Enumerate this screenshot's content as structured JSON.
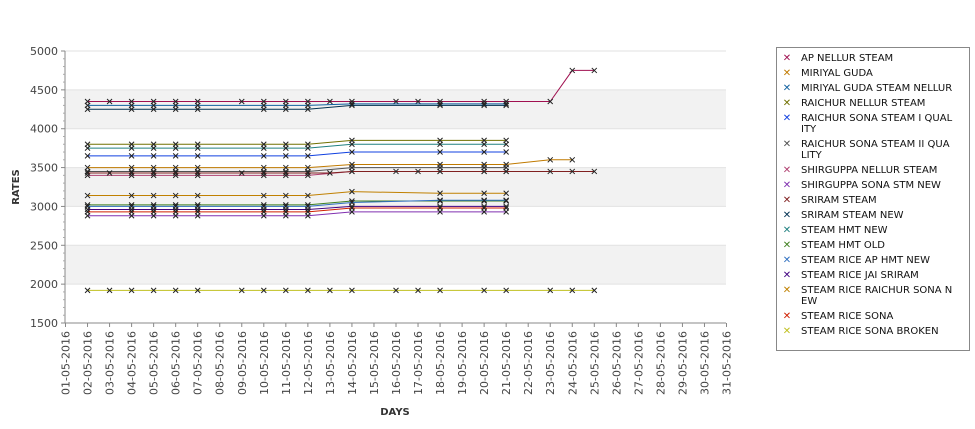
{
  "chart_data": {
    "type": "line",
    "xlabel": "DAYS",
    "ylabel": "RATES",
    "ylim": [
      1500,
      5000
    ],
    "yticks": [
      1500,
      2000,
      2500,
      3000,
      3500,
      4000,
      4500,
      5000
    ],
    "x": [
      "01-05-2016",
      "02-05-2016",
      "03-05-2016",
      "04-05-2016",
      "05-05-2016",
      "06-05-2016",
      "07-05-2016",
      "08-05-2016",
      "09-05-2016",
      "10-05-2016",
      "11-05-2016",
      "12-05-2016",
      "13-05-2016",
      "14-05-2016",
      "15-05-2016",
      "16-05-2016",
      "17-05-2016",
      "18-05-2016",
      "19-05-2016",
      "20-05-2016",
      "21-05-2016",
      "22-05-2016",
      "23-05-2016",
      "24-05-2016",
      "25-05-2016",
      "26-05-2016",
      "27-05-2016",
      "28-05-2016",
      "29-05-2016",
      "30-05-2016",
      "31-05-2016"
    ],
    "grid": true,
    "legend_position": "right",
    "series": [
      {
        "name": "AP NELLUR STEAM",
        "color": "#a01050",
        "values": [
          null,
          4350,
          4350,
          4350,
          4350,
          4350,
          4350,
          null,
          4350,
          4350,
          4350,
          4350,
          4350,
          4350,
          null,
          4350,
          4350,
          4350,
          null,
          4350,
          4350,
          null,
          4350,
          4750,
          4750,
          null,
          null,
          null,
          null,
          null,
          null
        ]
      },
      {
        "name": "MIRIYAL GUDA",
        "color": "#c07a00",
        "values": [
          null,
          3500,
          null,
          3500,
          3500,
          3500,
          3500,
          null,
          null,
          3500,
          3500,
          3500,
          null,
          3540,
          null,
          null,
          null,
          3540,
          null,
          3540,
          3540,
          null,
          3600,
          3600,
          null,
          null,
          null,
          null,
          null,
          null,
          null
        ]
      },
      {
        "name": "MIRIYAL GUDA STEAM NELLUR",
        "color": "#1060a0",
        "values": [
          null,
          4300,
          null,
          4300,
          4300,
          4300,
          4300,
          null,
          null,
          4300,
          4300,
          4300,
          null,
          4320,
          null,
          null,
          null,
          4320,
          null,
          4320,
          4320,
          null,
          null,
          null,
          null,
          null,
          null,
          null,
          null,
          null,
          null
        ]
      },
      {
        "name": "RAICHUR NELLUR STEAM",
        "color": "#707000",
        "values": [
          null,
          3800,
          null,
          3800,
          3800,
          3800,
          3800,
          null,
          null,
          3800,
          3800,
          3800,
          null,
          3850,
          null,
          null,
          null,
          3850,
          null,
          3850,
          3850,
          null,
          null,
          null,
          null,
          null,
          null,
          null,
          null,
          null,
          null
        ]
      },
      {
        "name": "RAICHUR SONA STEAM I QUALITY",
        "color": "#1040e0",
        "values": [
          null,
          3650,
          null,
          3650,
          3650,
          3650,
          3650,
          null,
          null,
          3650,
          3650,
          3650,
          null,
          3700,
          null,
          null,
          null,
          3700,
          null,
          3700,
          3700,
          null,
          null,
          null,
          null,
          null,
          null,
          null,
          null,
          null,
          null
        ]
      },
      {
        "name": "RAICHUR SONA STEAM II QUALITY",
        "color": "#505050",
        "values": [
          null,
          3450,
          null,
          3450,
          3450,
          3450,
          3450,
          null,
          null,
          3450,
          3450,
          3450,
          null,
          3500,
          null,
          null,
          null,
          3500,
          null,
          3500,
          3500,
          null,
          null,
          null,
          null,
          null,
          null,
          null,
          null,
          null,
          null
        ]
      },
      {
        "name": "SHIRGUPPA NELLUR STEAM",
        "color": "#b04070",
        "values": [
          null,
          3400,
          null,
          3400,
          3400,
          3400,
          3400,
          null,
          null,
          3400,
          3400,
          3400,
          null,
          3450,
          null,
          null,
          null,
          3450,
          null,
          3450,
          3450,
          null,
          null,
          null,
          null,
          null,
          null,
          null,
          null,
          null,
          null
        ]
      },
      {
        "name": "SHIRGUPPA SONA STM NEW",
        "color": "#8030b0",
        "values": [
          null,
          2880,
          null,
          2880,
          2880,
          2880,
          2880,
          null,
          null,
          2880,
          2880,
          2880,
          null,
          2930,
          null,
          null,
          null,
          2930,
          null,
          2930,
          2930,
          null,
          null,
          null,
          null,
          null,
          null,
          null,
          null,
          null,
          null
        ]
      },
      {
        "name": "SRIRAM STEAM",
        "color": "#802020",
        "values": [
          null,
          3430,
          3430,
          3430,
          3430,
          3430,
          3430,
          null,
          3430,
          3430,
          3430,
          3430,
          3430,
          3450,
          null,
          3450,
          3450,
          3450,
          null,
          3450,
          3450,
          null,
          3450,
          3450,
          3450,
          null,
          null,
          null,
          null,
          null,
          null
        ]
      },
      {
        "name": "SRIRAM STEAM NEW",
        "color": "#003050",
        "values": [
          null,
          4250,
          null,
          4250,
          4250,
          4250,
          4250,
          null,
          null,
          4250,
          4250,
          4250,
          null,
          4300,
          null,
          null,
          null,
          4300,
          null,
          4300,
          4300,
          null,
          null,
          null,
          null,
          null,
          null,
          null,
          null,
          null,
          null
        ]
      },
      {
        "name": "STEAM HMT NEW",
        "color": "#208080",
        "values": [
          null,
          3750,
          null,
          3750,
          3750,
          3750,
          3750,
          null,
          null,
          3750,
          3750,
          3750,
          null,
          3800,
          null,
          null,
          null,
          3800,
          null,
          3800,
          3800,
          null,
          null,
          null,
          null,
          null,
          null,
          null,
          null,
          null,
          null
        ]
      },
      {
        "name": "STEAM HMT OLD",
        "color": "#408020",
        "values": [
          null,
          3020,
          null,
          3020,
          3020,
          3020,
          3020,
          null,
          null,
          3020,
          3020,
          3020,
          null,
          3070,
          null,
          null,
          null,
          3070,
          null,
          3070,
          3070,
          null,
          null,
          null,
          null,
          null,
          null,
          null,
          null,
          null,
          null
        ]
      },
      {
        "name": "STEAM RICE AP HMT NEW",
        "color": "#3070c0",
        "values": [
          null,
          3000,
          null,
          3000,
          3000,
          3000,
          3000,
          null,
          null,
          3000,
          3000,
          3000,
          null,
          3050,
          null,
          null,
          null,
          3080,
          null,
          3080,
          3080,
          null,
          null,
          null,
          null,
          null,
          null,
          null,
          null,
          null,
          null
        ]
      },
      {
        "name": "STEAM RICE JAI SRIRAM",
        "color": "#400080",
        "values": [
          null,
          2960,
          null,
          2960,
          2960,
          2960,
          2960,
          null,
          null,
          2960,
          2960,
          2960,
          null,
          3000,
          null,
          null,
          null,
          3000,
          null,
          3000,
          3000,
          null,
          null,
          null,
          null,
          null,
          null,
          null,
          null,
          null,
          null
        ]
      },
      {
        "name": "STEAM RICE RAICHUR SONA NEW",
        "color": "#c08000",
        "values": [
          null,
          3140,
          null,
          3140,
          3140,
          3140,
          3140,
          null,
          null,
          3140,
          3140,
          3140,
          null,
          3190,
          null,
          null,
          null,
          3170,
          null,
          3170,
          3170,
          null,
          null,
          null,
          null,
          null,
          null,
          null,
          null,
          null,
          null
        ]
      },
      {
        "name": "STEAM RICE SONA",
        "color": "#d02000",
        "values": [
          null,
          2930,
          null,
          2930,
          2930,
          2930,
          2930,
          null,
          null,
          2930,
          2930,
          2930,
          null,
          2980,
          null,
          null,
          null,
          2980,
          null,
          2980,
          2980,
          null,
          null,
          null,
          null,
          null,
          null,
          null,
          null,
          null,
          null
        ]
      },
      {
        "name": "STEAM RICE SONA BROKEN",
        "color": "#c0c020",
        "values": [
          null,
          1920,
          1920,
          1920,
          1920,
          1920,
          1920,
          null,
          1920,
          1920,
          1920,
          1920,
          1920,
          1920,
          null,
          1920,
          1920,
          1920,
          null,
          1920,
          1920,
          null,
          1920,
          1920,
          1920,
          null,
          null,
          null,
          null,
          null,
          null
        ]
      }
    ]
  },
  "legend_lines": [
    [
      "AP NELLUR STEAM"
    ],
    [
      "MIRIYAL GUDA"
    ],
    [
      "MIRIYAL GUDA STEAM NELLUR"
    ],
    [
      "RAICHUR NELLUR STEAM"
    ],
    [
      "RAICHUR SONA STEAM I QUAL",
      "ITY"
    ],
    [
      "RAICHUR SONA STEAM II QUA",
      "LITY"
    ],
    [
      "SHIRGUPPA NELLUR STEAM"
    ],
    [
      "SHIRGUPPA SONA STM NEW"
    ],
    [
      "SRIRAM STEAM"
    ],
    [
      "SRIRAM STEAM NEW"
    ],
    [
      "STEAM HMT NEW"
    ],
    [
      "STEAM HMT OLD"
    ],
    [
      "STEAM RICE AP HMT NEW"
    ],
    [
      "STEAM RICE JAI SRIRAM"
    ],
    [
      "STEAM RICE RAICHUR SONA N",
      "EW"
    ],
    [
      "STEAM RICE SONA"
    ],
    [
      "STEAM RICE SONA BROKEN"
    ]
  ]
}
